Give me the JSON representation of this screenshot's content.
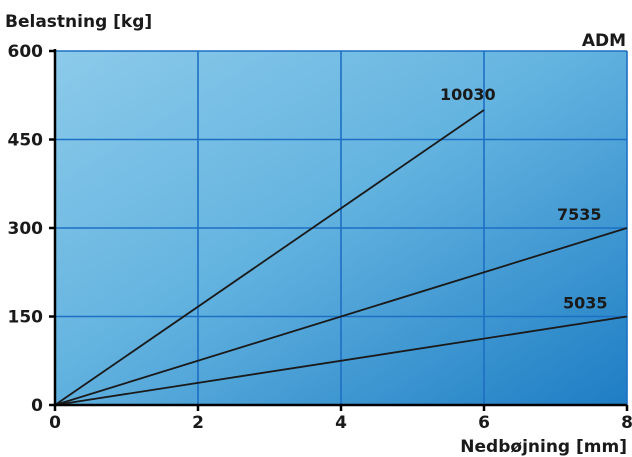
{
  "chart_data": {
    "type": "line",
    "title": "",
    "brand": "ADM",
    "ylabel": "Belastning [kg]",
    "xlabel": "Nedbøjning [mm]",
    "xlim": [
      0,
      8
    ],
    "ylim": [
      0,
      600
    ],
    "xticks": [
      0,
      2,
      4,
      6,
      8
    ],
    "yticks": [
      0,
      150,
      300,
      450,
      600
    ],
    "grid": true,
    "series": [
      {
        "name": "10030",
        "x": [
          0,
          6
        ],
        "y": [
          0,
          500
        ]
      },
      {
        "name": "7535",
        "x": [
          0,
          8
        ],
        "y": [
          0,
          300
        ]
      },
      {
        "name": "5035",
        "x": [
          0,
          8
        ],
        "y": [
          0,
          150
        ]
      }
    ]
  },
  "colors": {
    "plot_light": "#8ccaea",
    "plot_mid": "#64b4e0",
    "plot_dark": "#1e7dc4",
    "grid": "#1d6fc4",
    "axis": "#000000",
    "series_line": "#1a1a1a"
  }
}
